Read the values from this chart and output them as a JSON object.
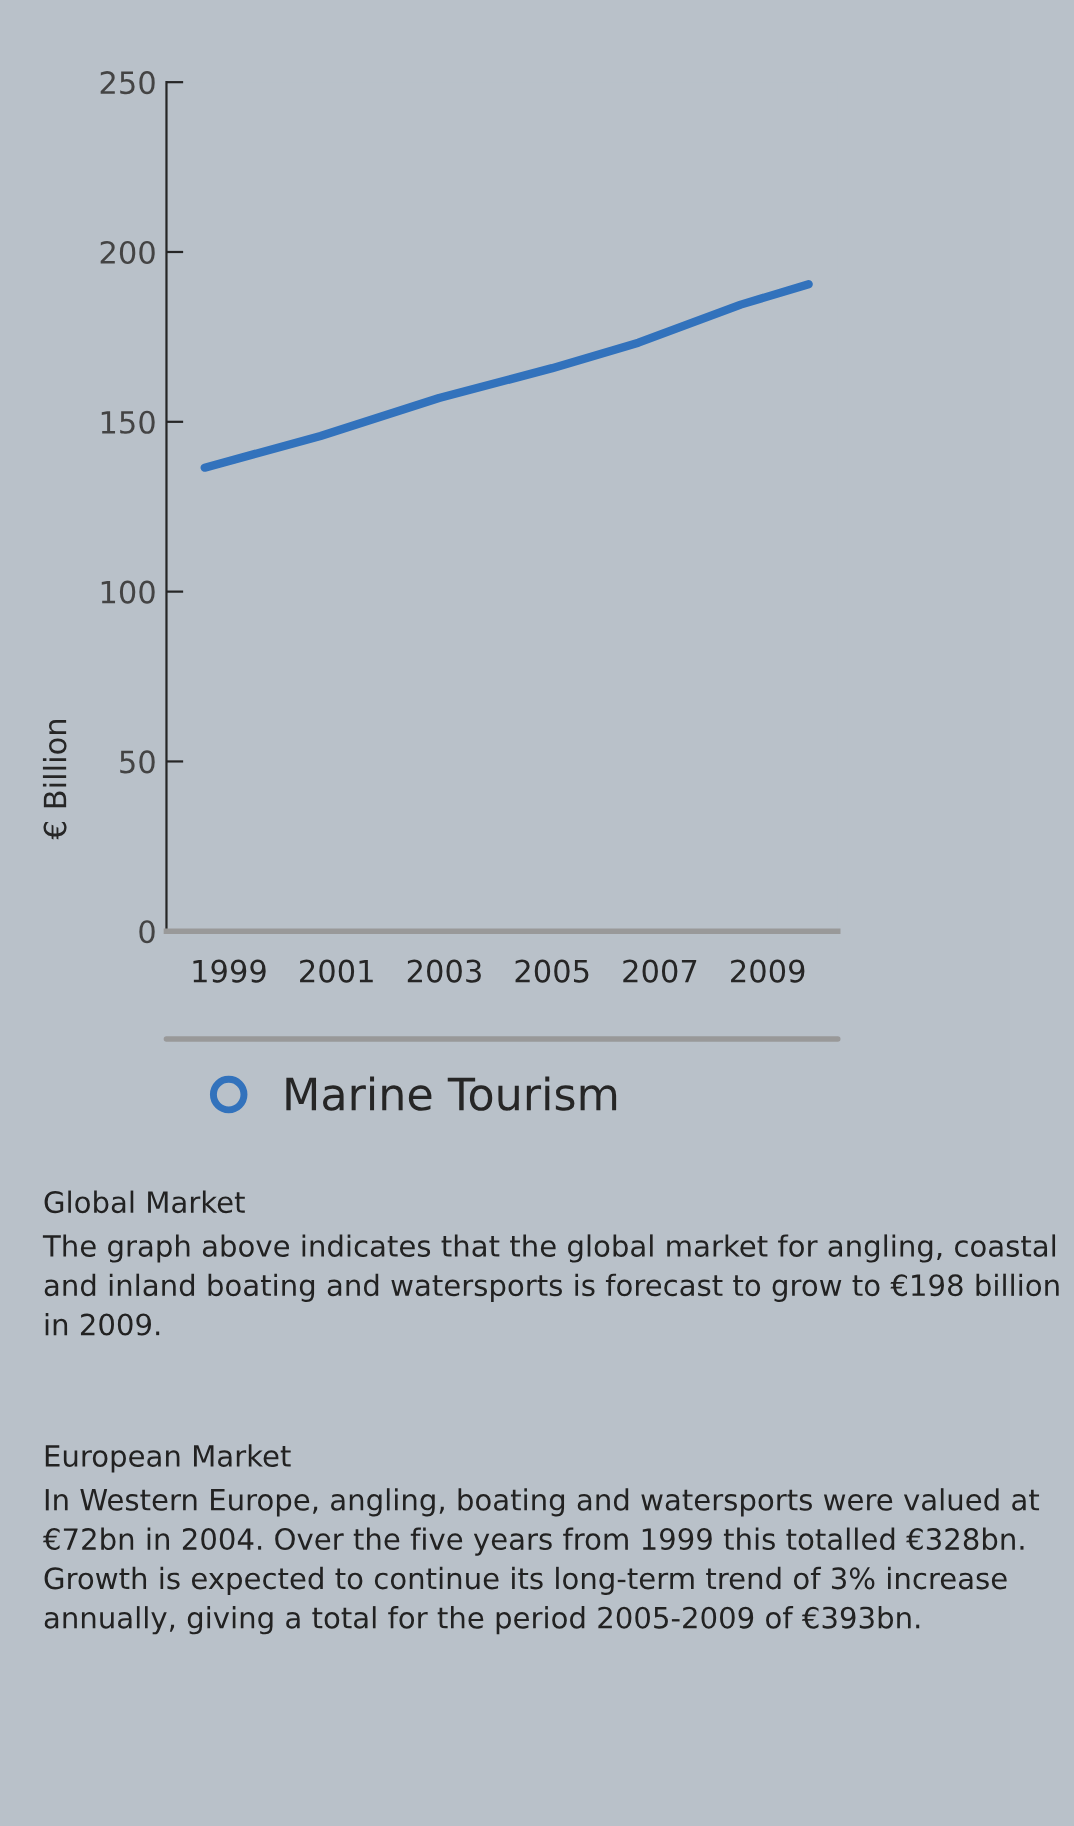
{
  "chart_data": {
    "type": "line",
    "ylabel": "€ Billion",
    "x": [
      1998.55,
      2000.7,
      2002.9,
      2005.0,
      2006.6,
      2008.5,
      2009.76
    ],
    "series": [
      {
        "name": "Marine Tourism",
        "color": "#3272bc",
        "values": [
          136.5,
          145.8,
          157,
          165.8,
          173.3,
          184.5,
          190.5
        ]
      }
    ],
    "xlim": [
      1997.84,
      2010.3
    ],
    "xticks": [
      1999,
      2001,
      2003,
      2005,
      2007,
      2009
    ],
    "ylim": [
      0,
      250
    ],
    "yticks": [
      0,
      50,
      100,
      150,
      200,
      250
    ],
    "grid": false,
    "legend": "bottom",
    "marker": "none",
    "line_style": "solid",
    "annotations": [
      "Global Market",
      "The graph above indicates that the global market for angling, coastal and inland boating and watersports is forecast to grow to €198 billion in 2009.",
      "European Market",
      "In Western Europe, angling, boating and watersports were valued at €72bn in 2004. Over the five years from 1999 this totalled €328bn. Growth is expected to continue its long-term trend of 3% increase annually, giving a total for the period 2005-2009 of €393bn."
    ]
  }
}
